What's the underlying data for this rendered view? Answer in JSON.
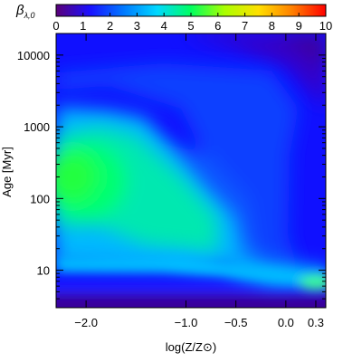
{
  "chart_data": {
    "type": "heatmap",
    "xlabel": "log(Z/Z⊙)",
    "ylabel": "Age [Myr]",
    "x_ticks": [
      {
        "value": -2.0,
        "label": "−2.0"
      },
      {
        "value": -1.0,
        "label": "−1.0"
      },
      {
        "value": -0.5,
        "label": "−0.5"
      },
      {
        "value": 0.0,
        "label": "0.0"
      },
      {
        "value": 0.3,
        "label": "0.3"
      }
    ],
    "y_ticks": [
      {
        "value": 10,
        "label": "10"
      },
      {
        "value": 100,
        "label": "100"
      },
      {
        "value": 1000,
        "label": "1000"
      },
      {
        "value": 10000,
        "label": "10000"
      }
    ],
    "y_scale": "log",
    "xlim": [
      -2.3,
      0.4
    ],
    "ylim": [
      3,
      20000
    ],
    "colorbar": {
      "label": "βλ,0",
      "label_main": "β",
      "label_sub": "λ,0",
      "position": "top",
      "range": [
        0,
        10
      ],
      "ticks": [
        "0",
        "1",
        "2",
        "3",
        "4",
        "5",
        "6",
        "7",
        "8",
        "9",
        "10"
      ]
    },
    "colormap": [
      "#5a0078",
      "#1a10ff",
      "#0078ff",
      "#00d8ff",
      "#00ff60",
      "#aaff00",
      "#ffe000",
      "#ff8000",
      "#ff0000"
    ],
    "grid": false
  }
}
